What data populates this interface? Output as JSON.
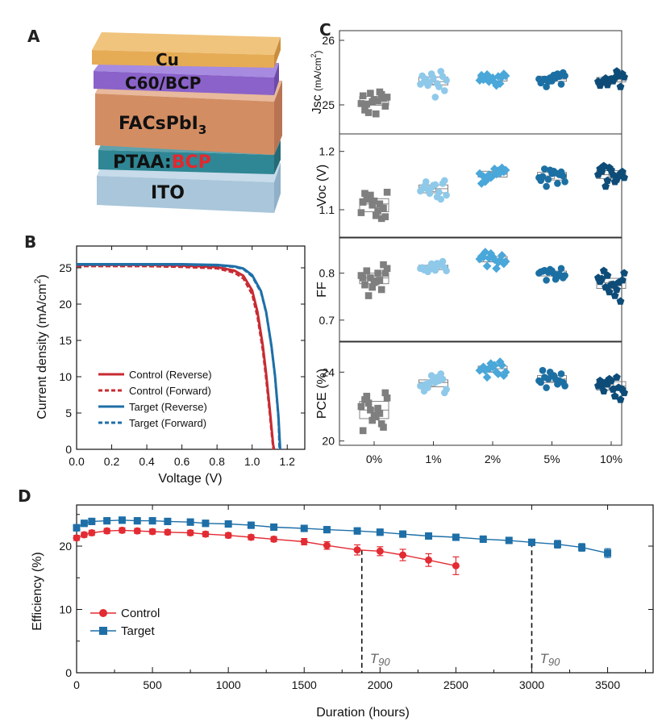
{
  "panels": {
    "A": "A",
    "B": "B",
    "C": "C",
    "D": "D"
  },
  "panel_a": {
    "layers": [
      {
        "name": "Cu",
        "color": "#e6ac55"
      },
      {
        "name": "C60/BCP",
        "color": "#8a62c9"
      },
      {
        "name": "FACsPbI3",
        "color": "#d38d63"
      },
      {
        "name": "PTAA:BCP",
        "color": "#2f8694"
      },
      {
        "name": "ITO",
        "color": "#a9c6da"
      }
    ],
    "ptaa_prefix": "PTAA:",
    "ptaa_suffix": "BCP",
    "facs_main": "FACsPbI",
    "facs_sub": "3",
    "highlight_color": "#e5272d"
  },
  "chart_data": [
    {
      "id": "B",
      "type": "line",
      "xlabel": "Voltage (V)",
      "ylabel": "Current density (mA/cm²)",
      "ylabel_main": "Current density (mA/cm",
      "ylabel_sup": "2",
      "ylabel_end": ")",
      "xlim": [
        0.0,
        1.3
      ],
      "ylim": [
        0,
        28
      ],
      "xticks": [
        "0.0",
        "0.2",
        "0.4",
        "0.6",
        "0.8",
        "1.0",
        "1.2"
      ],
      "yticks": [
        "0",
        "5",
        "10",
        "15",
        "20",
        "25"
      ],
      "legend_position": "bottom-left",
      "series": [
        {
          "name": "Control (Reverse)",
          "color": "#c82b32",
          "dash": false,
          "x": [
            0,
            0.2,
            0.4,
            0.6,
            0.8,
            0.9,
            0.95,
            1.0,
            1.03,
            1.06,
            1.08,
            1.1,
            1.12,
            1.125
          ],
          "y": [
            25.4,
            25.4,
            25.4,
            25.3,
            25.1,
            24.6,
            23.9,
            21.9,
            19.0,
            14.4,
            10.4,
            5.6,
            0.6,
            0
          ]
        },
        {
          "name": "Control (Forward)",
          "color": "#c82b32",
          "dash": true,
          "x": [
            0,
            0.2,
            0.4,
            0.6,
            0.8,
            0.9,
            0.95,
            1.0,
            1.03,
            1.06,
            1.08,
            1.1,
            1.11,
            1.12
          ],
          "y": [
            25.2,
            25.2,
            25.2,
            25.1,
            24.9,
            24.3,
            23.5,
            21.3,
            18.2,
            13.6,
            9.5,
            4.8,
            2.3,
            0
          ]
        },
        {
          "name": "Target  (Reverse)",
          "color": "#1e6fa8",
          "dash": false,
          "x": [
            0,
            0.2,
            0.4,
            0.6,
            0.8,
            0.9,
            0.95,
            1.0,
            1.05,
            1.08,
            1.11,
            1.13,
            1.15,
            1.16
          ],
          "y": [
            25.5,
            25.5,
            25.5,
            25.5,
            25.4,
            25.2,
            24.9,
            24.0,
            21.8,
            18.9,
            14.3,
            10.2,
            4.6,
            0
          ]
        },
        {
          "name": "Target  (Forward)",
          "color": "#1e6fa8",
          "dash": true,
          "x": [
            0,
            0.2,
            0.4,
            0.6,
            0.8,
            0.9,
            0.95,
            1.0,
            1.05,
            1.08,
            1.11,
            1.13,
            1.15,
            1.155
          ],
          "y": [
            25.4,
            25.4,
            25.4,
            25.4,
            25.3,
            25.1,
            24.8,
            23.8,
            21.6,
            18.7,
            14.0,
            9.9,
            4.0,
            0
          ]
        }
      ]
    },
    {
      "id": "C",
      "type": "scatter",
      "categories": [
        "0%",
        "1%",
        "2%",
        "5%",
        "10%"
      ],
      "category_colors": [
        "#7f7f7f",
        "#8fc9ea",
        "#4aa7d9",
        "#1b6fa3",
        "#0e4c78"
      ],
      "category_markers": [
        "square",
        "circle",
        "diamond",
        "circle",
        "pentagon"
      ],
      "subplots": [
        {
          "ylabel": "Jsc",
          "ylabel_unit": "(mA/cm²)",
          "ylabel_unit_main": "(mA/cm",
          "ylabel_unit_sup": "2",
          "ylabel_unit_end": ")",
          "ylim": [
            24.55,
            26.15
          ],
          "yticks": [
            {
              "v": 25,
              "label": "25"
            },
            {
              "v": 26,
              "label": "26"
            }
          ],
          "values": [
            [
              25.02,
              25.08,
              25.12,
              25.05,
              24.98,
              25.18,
              25.1,
              24.88,
              25.16,
              25.01,
              25.2,
              24.92,
              25.06,
              25.14,
              24.86
            ],
            [
              25.32,
              25.42,
              25.38,
              25.48,
              25.22,
              25.35,
              25.44,
              25.3,
              25.52,
              25.4,
              25.28,
              25.36,
              25.33,
              25.45,
              25.12
            ],
            [
              25.38,
              25.42,
              25.45,
              25.4,
              25.48,
              25.36,
              25.43,
              25.47,
              25.33,
              25.41,
              25.44,
              25.39,
              25.3,
              25.46,
              25.35
            ],
            [
              25.4,
              25.37,
              25.45,
              25.42,
              25.5,
              25.36,
              25.32,
              25.28,
              25.44,
              25.4,
              25.48,
              25.38,
              25.42,
              25.34,
              25.46
            ],
            [
              25.36,
              25.4,
              25.43,
              25.39,
              25.48,
              25.31,
              25.28,
              25.41,
              25.45,
              25.38,
              25.52,
              25.35,
              25.42,
              25.3,
              25.37
            ]
          ]
        },
        {
          "ylabel": "Voc (V)",
          "ylim": [
            1.053,
            1.23
          ],
          "yticks": [
            {
              "v": 1.1,
              "label": "1.1"
            },
            {
              "v": 1.2,
              "label": "1.2"
            }
          ],
          "values": [
            [
              1.095,
              1.115,
              1.13,
              1.108,
              1.088,
              1.125,
              1.103,
              1.118,
              1.085,
              1.12,
              1.11,
              1.128,
              1.098,
              1.113,
              1.09
            ],
            [
              1.132,
              1.142,
              1.125,
              1.138,
              1.15,
              1.128,
              1.145,
              1.135,
              1.118,
              1.148,
              1.13,
              1.14,
              1.122,
              1.136,
              1.143
            ],
            [
              1.162,
              1.158,
              1.168,
              1.155,
              1.165,
              1.16,
              1.172,
              1.152,
              1.163,
              1.148,
              1.167,
              1.157,
              1.161,
              1.145,
              1.17
            ],
            [
              1.155,
              1.162,
              1.148,
              1.168,
              1.158,
              1.152,
              1.165,
              1.14,
              1.16,
              1.17,
              1.145,
              1.157,
              1.163,
              1.15,
              1.166
            ],
            [
              1.16,
              1.168,
              1.155,
              1.172,
              1.165,
              1.15,
              1.162,
              1.14,
              1.158,
              1.175,
              1.152,
              1.166,
              1.148,
              1.17,
              1.16
            ]
          ]
        },
        {
          "ylabel": "FF",
          "ylim": [
            0.655,
            0.875
          ],
          "yticks": [
            {
              "v": 0.7,
              "label": "0.7"
            },
            {
              "v": 0.8,
              "label": "0.8"
            }
          ],
          "values": [
            [
              0.795,
              0.78,
              0.81,
              0.77,
              0.8,
              0.79,
              0.818,
              0.752,
              0.765,
              0.805,
              0.785,
              0.775,
              0.8,
              0.79,
              0.782
            ],
            [
              0.81,
              0.815,
              0.805,
              0.82,
              0.812,
              0.808,
              0.825,
              0.803,
              0.818,
              0.81,
              0.816,
              0.807,
              0.821,
              0.812,
              0.806
            ],
            [
              0.83,
              0.835,
              0.825,
              0.842,
              0.82,
              0.832,
              0.838,
              0.815,
              0.828,
              0.845,
              0.823,
              0.834,
              0.81,
              0.836,
              0.829
            ],
            [
              0.8,
              0.805,
              0.795,
              0.808,
              0.79,
              0.802,
              0.81,
              0.785,
              0.798,
              0.806,
              0.793,
              0.804,
              0.787,
              0.803,
              0.799
            ],
            [
              0.79,
              0.775,
              0.8,
              0.76,
              0.785,
              0.795,
              0.74,
              0.77,
              0.78,
              0.805,
              0.765,
              0.788,
              0.752,
              0.782,
              0.776
            ]
          ]
        },
        {
          "ylabel": "PCE (%)",
          "ylim": [
            19.75,
            25.75
          ],
          "yticks": [
            {
              "v": 20,
              "label": "20"
            },
            {
              "v": 24,
              "label": "24"
            }
          ],
          "values": [
            [
              22.0,
              21.5,
              22.5,
              21.2,
              22.8,
              21.8,
              20.8,
              22.2,
              21.0,
              22.6,
              21.6,
              22.4,
              21.9,
              20.6,
              21.4
            ],
            [
              23.2,
              23.5,
              23.0,
              23.8,
              22.8,
              23.4,
              23.6,
              23.1,
              23.9,
              23.3,
              23.5,
              22.9,
              23.7,
              23.2,
              23.4
            ],
            [
              24.1,
              24.3,
              24.0,
              24.5,
              23.8,
              24.2,
              24.4,
              23.7,
              24.6,
              24.1,
              23.9,
              24.3,
              24.0,
              24.2,
              24.4
            ],
            [
              23.5,
              23.8,
              23.2,
              24.0,
              23.4,
              23.6,
              23.9,
              23.1,
              23.5,
              23.7,
              23.3,
              24.1,
              23.6,
              23.4,
              23.8
            ],
            [
              23.2,
              23.5,
              22.8,
              23.6,
              23.0,
              23.3,
              22.4,
              23.4,
              23.1,
              22.9,
              23.7,
              23.2,
              22.6,
              23.5,
              23.0
            ]
          ]
        }
      ]
    },
    {
      "id": "D",
      "type": "line",
      "xlabel": "Duration (hours)",
      "ylabel": "Efficiency (%)",
      "xlim": [
        0,
        3800
      ],
      "ylim": [
        0,
        26.5
      ],
      "xticks": [
        0,
        500,
        1000,
        1500,
        2000,
        2500,
        3000,
        3500
      ],
      "yticks": [
        0,
        10,
        20
      ],
      "legend_position": "left",
      "series": [
        {
          "name": "Control",
          "color": "#e32b33",
          "marker": "circle",
          "x": [
            0,
            50,
            100,
            200,
            300,
            400,
            500,
            600,
            750,
            850,
            1000,
            1150,
            1300,
            1500,
            1650,
            1850,
            2000,
            2150,
            2320,
            2500
          ],
          "y": [
            21.3,
            21.8,
            22.1,
            22.4,
            22.5,
            22.4,
            22.3,
            22.2,
            22.1,
            21.9,
            21.7,
            21.4,
            21.1,
            20.7,
            20.1,
            19.4,
            19.2,
            18.6,
            17.8,
            16.9
          ],
          "err": [
            0.4,
            0.4,
            0.4,
            0.4,
            0.4,
            0.4,
            0.4,
            0.4,
            0.4,
            0.4,
            0.4,
            0.4,
            0.4,
            0.5,
            0.6,
            0.8,
            0.7,
            0.9,
            1.0,
            1.4
          ]
        },
        {
          "name": "Target",
          "color": "#1e6fa8",
          "marker": "square",
          "x": [
            0,
            50,
            100,
            200,
            300,
            400,
            500,
            600,
            750,
            850,
            1000,
            1150,
            1300,
            1500,
            1650,
            1850,
            2000,
            2150,
            2320,
            2500,
            2680,
            2850,
            3000,
            3170,
            3330,
            3500
          ],
          "y": [
            22.9,
            23.6,
            23.9,
            24.0,
            24.1,
            24.0,
            24.0,
            23.9,
            23.8,
            23.6,
            23.5,
            23.3,
            23.0,
            22.8,
            22.6,
            22.4,
            22.2,
            21.9,
            21.6,
            21.4,
            21.1,
            20.9,
            20.6,
            20.3,
            19.8,
            18.9
          ],
          "err": [
            0.5,
            0.5,
            0.5,
            0.5,
            0.5,
            0.5,
            0.5,
            0.5,
            0.5,
            0.5,
            0.5,
            0.5,
            0.5,
            0.5,
            0.5,
            0.5,
            0.5,
            0.5,
            0.5,
            0.5,
            0.5,
            0.5,
            0.5,
            0.6,
            0.6,
            0.7
          ]
        }
      ],
      "annotations": [
        {
          "x": 1880,
          "label": "T90",
          "label_main": "T",
          "label_sub": "90"
        },
        {
          "x": 3000,
          "label": "T90",
          "label_main": "T",
          "label_sub": "90"
        }
      ]
    }
  ]
}
